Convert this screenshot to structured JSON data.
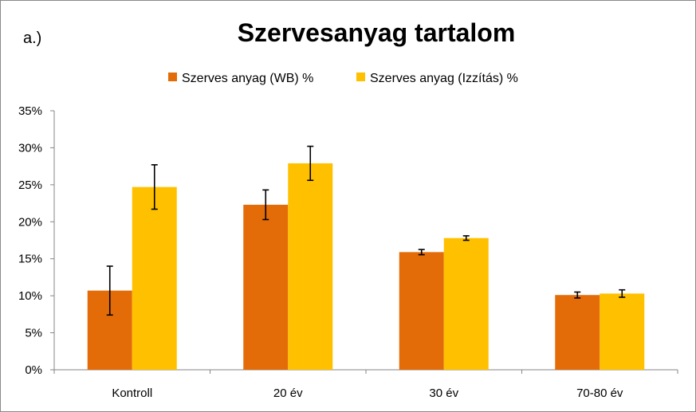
{
  "panel_label": "a.)",
  "chart_data": {
    "type": "bar",
    "title": "Szervesanyag tartalom",
    "categories": [
      "Kontroll",
      "20 év",
      "30 év",
      "70-80 év"
    ],
    "series": [
      {
        "name": "Szerves anyag (WB) %",
        "color": "#E36C09",
        "values": [
          10.7,
          22.3,
          15.9,
          10.1
        ],
        "errors": [
          3.3,
          2.0,
          0.35,
          0.4
        ]
      },
      {
        "name": "Szerves anyag (Izzítás) %",
        "color": "#FFC000",
        "values": [
          24.7,
          27.9,
          17.8,
          10.3
        ],
        "errors": [
          3.0,
          2.3,
          0.3,
          0.5
        ]
      }
    ],
    "ylim": [
      0,
      35
    ],
    "yticks": [
      0,
      5,
      10,
      15,
      20,
      25,
      30,
      35
    ],
    "ytick_labels": [
      "0%",
      "5%",
      "10%",
      "15%",
      "20%",
      "25%",
      "30%",
      "35%"
    ],
    "xlabel": "",
    "ylabel": "",
    "legend_position": "top-center",
    "grid": false
  }
}
